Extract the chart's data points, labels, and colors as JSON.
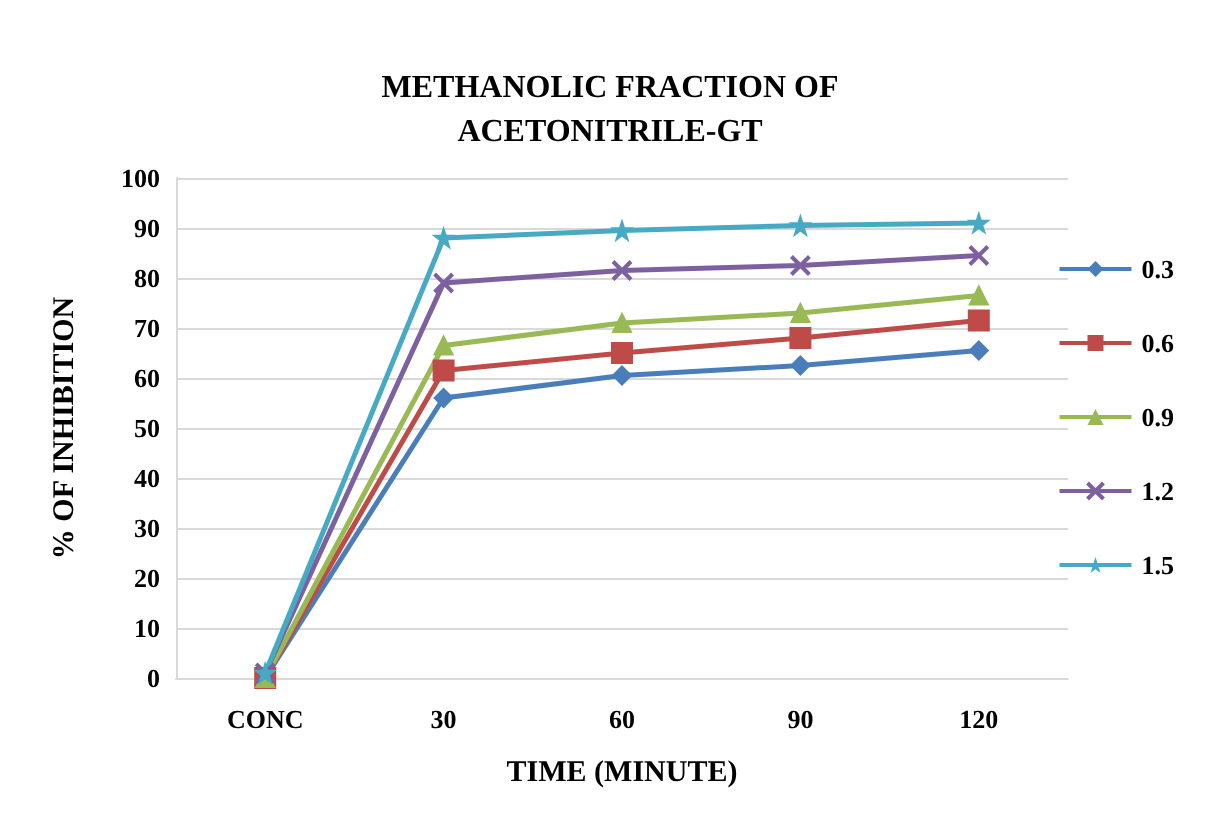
{
  "chart_data": {
    "type": "line",
    "title": "METHANOLIC FRACTION OF\nACETONITRILE-GT",
    "xlabel": "TIME (MINUTE)",
    "ylabel": "% OF INHIBITION",
    "categories": [
      "CONC",
      "30",
      "60",
      "90",
      "120"
    ],
    "ylim": [
      0,
      100
    ],
    "yticks": [
      0,
      10,
      20,
      30,
      40,
      50,
      60,
      70,
      80,
      90,
      100
    ],
    "grid": "y",
    "legend": "right",
    "series": [
      {
        "name": "0.3",
        "color": "#4a7ebb",
        "marker": "diamond",
        "values": [
          0,
          56,
          60.5,
          62.5,
          65.5
        ]
      },
      {
        "name": "0.6",
        "color": "#be4b48",
        "marker": "square",
        "values": [
          0,
          61.5,
          65,
          68,
          71.5
        ]
      },
      {
        "name": "0.9",
        "color": "#98b954",
        "marker": "triangle",
        "values": [
          0,
          66.5,
          71,
          73,
          76.5
        ]
      },
      {
        "name": "1.2",
        "color": "#7d60a0",
        "marker": "cross",
        "values": [
          1,
          79,
          81.5,
          82.5,
          84.5
        ]
      },
      {
        "name": "1.5",
        "color": "#46aac5",
        "marker": "star",
        "values": [
          1,
          88,
          89.5,
          90.5,
          91
        ]
      }
    ]
  }
}
